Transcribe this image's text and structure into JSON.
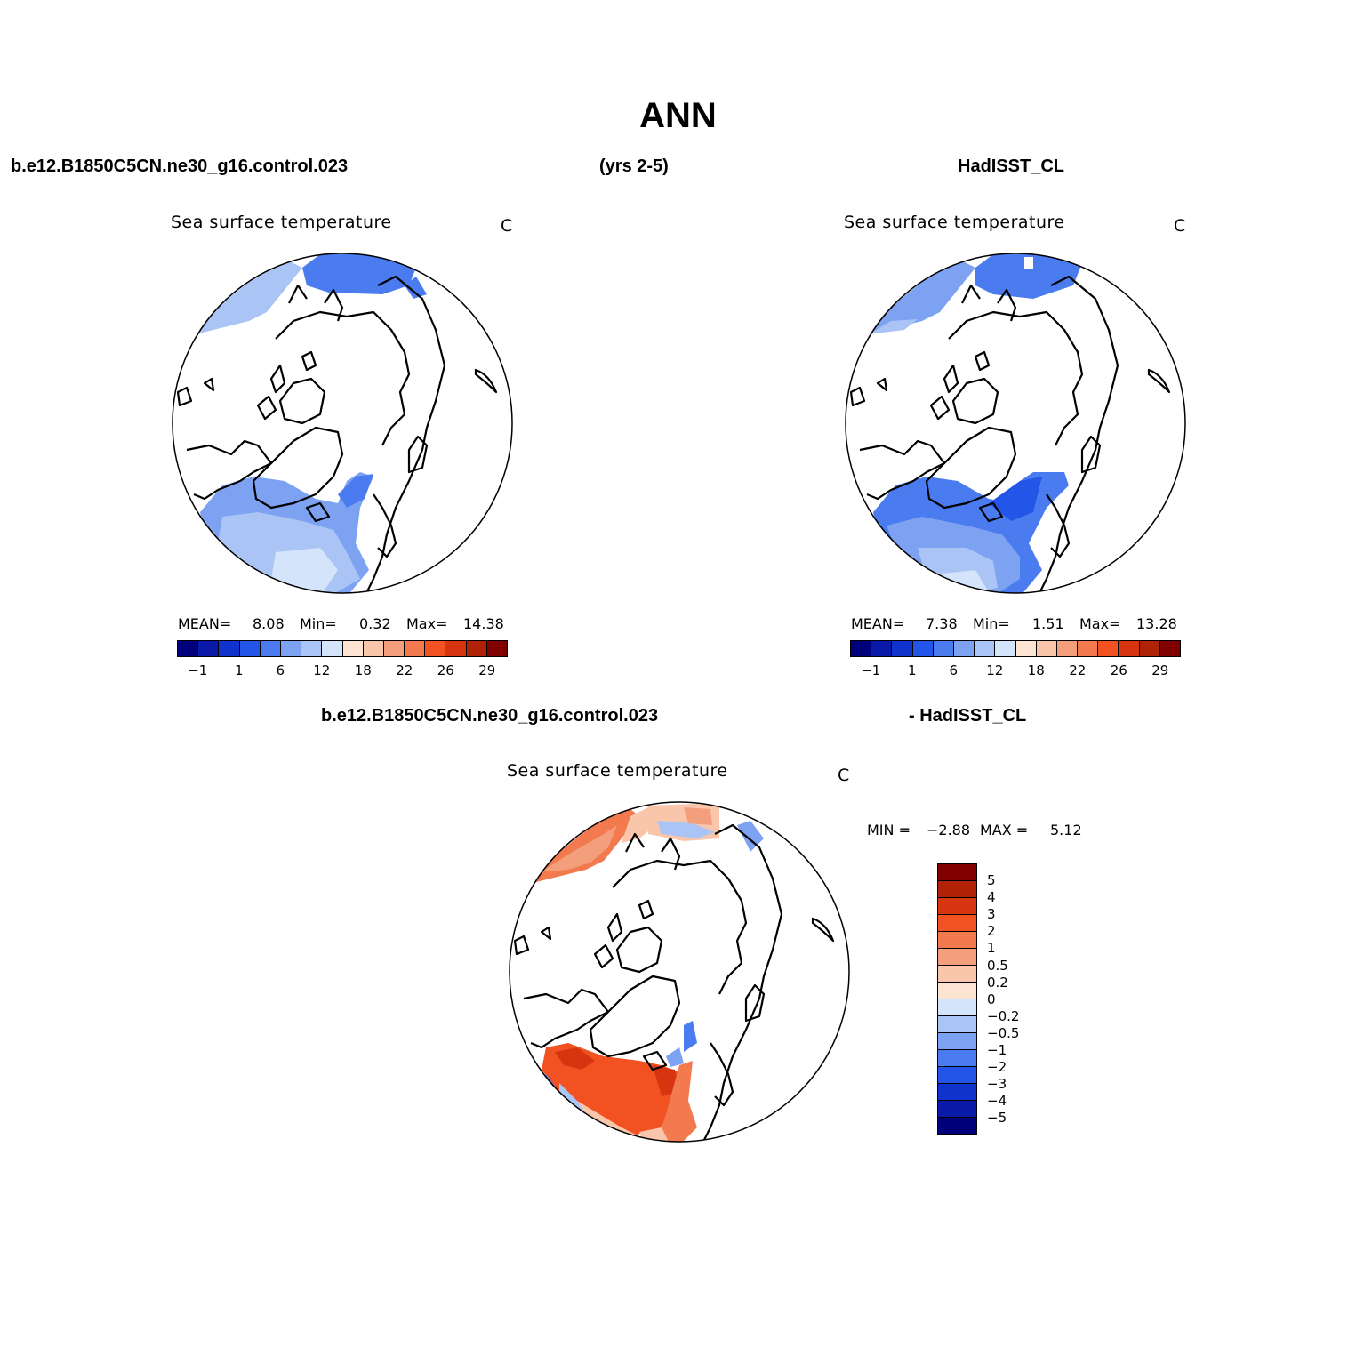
{
  "title": "ANN",
  "header": {
    "case_name": "b.e12.B1850C5CN.ne30_g16.control.023",
    "years": "(yrs 2-5)",
    "obs_name": "HadISST_CL"
  },
  "diff_header": {
    "case_name": "b.e12.B1850C5CN.ne30_g16.control.023",
    "obs_name": "- HadISST_CL"
  },
  "panels": {
    "model": {
      "title": "Sea surface temperature",
      "units": "C",
      "mean_label": "MEAN=",
      "mean_value": "8.08",
      "min_label": "Min=",
      "min_value": "0.32",
      "max_label": "Max=",
      "max_value": "14.38"
    },
    "obs": {
      "title": "Sea surface temperature",
      "units": "C",
      "mean_label": "MEAN=",
      "mean_value": "7.38",
      "min_label": "Min=",
      "min_value": "1.51",
      "max_label": "Max=",
      "max_value": "13.28"
    },
    "diff": {
      "title": "Sea surface temperature",
      "units": "C",
      "min_label": "MIN =",
      "min_value": "−2.88",
      "max_label": "MAX =",
      "max_value": "5.12"
    }
  },
  "abs_colorbar": {
    "colors": [
      "#00007a",
      "#0a1aa8",
      "#0f33cc",
      "#2255e8",
      "#4a7cf0",
      "#7da2f2",
      "#aac4f6",
      "#d4e4fa",
      "#fde4d2",
      "#f9c6ab",
      "#f49f7c",
      "#f27a4e",
      "#f25122",
      "#d63510",
      "#b02205",
      "#800000"
    ],
    "tick_labels": [
      "−1",
      "1",
      "6",
      "12",
      "18",
      "22",
      "26",
      "29"
    ]
  },
  "diff_colorbar": {
    "colors": [
      "#800000",
      "#b02205",
      "#d63510",
      "#f25122",
      "#f27a4e",
      "#f49f7c",
      "#f9c6ab",
      "#fde4d2",
      "#d4e4fa",
      "#aac4f6",
      "#7da2f2",
      "#4a7cf0",
      "#2255e8",
      "#0f33cc",
      "#0a1aa8",
      "#00007a"
    ],
    "tick_labels": [
      "5",
      "4",
      "3",
      "2",
      "1",
      "0.5",
      "0.2",
      "0",
      "−0.2",
      "−0.5",
      "−1",
      "−2",
      "−3",
      "−4",
      "−5"
    ]
  }
}
